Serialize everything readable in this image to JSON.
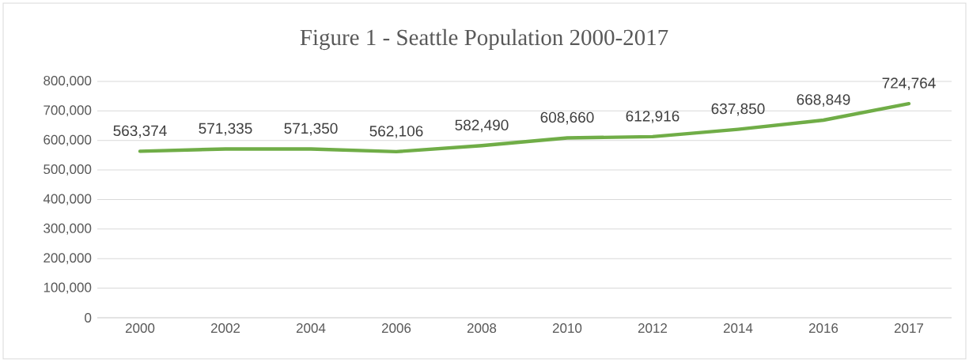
{
  "chart_data": {
    "type": "line",
    "title": "Figure 1 - Seattle Population 2000-2017",
    "categories": [
      "2000",
      "2002",
      "2004",
      "2006",
      "2008",
      "2010",
      "2012",
      "2014",
      "2016",
      "2017"
    ],
    "values": [
      563374,
      571335,
      571350,
      562106,
      582490,
      608660,
      612916,
      637850,
      668849,
      724764
    ],
    "value_labels": [
      "563,374",
      "571,335",
      "571,350",
      "562,106",
      "582,490",
      "608,660",
      "612,916",
      "637,850",
      "668,849",
      "724,764"
    ],
    "color": "#70ad47",
    "ylim": [
      0,
      800000
    ],
    "yticks": [
      0,
      {
        "value": 100000,
        "label": "100,000"
      },
      {
        "value": 200000,
        "label": "200,000"
      },
      {
        "value": 300000,
        "label": "300,000"
      },
      {
        "value": 400000,
        "label": "400,000"
      },
      {
        "value": 500000,
        "label": "500,000"
      },
      {
        "value": 600000,
        "label": "600,000"
      },
      {
        "value": 700000,
        "label": "700,000"
      },
      {
        "value": 800000,
        "label": "800,000"
      }
    ],
    "grid": "y"
  }
}
